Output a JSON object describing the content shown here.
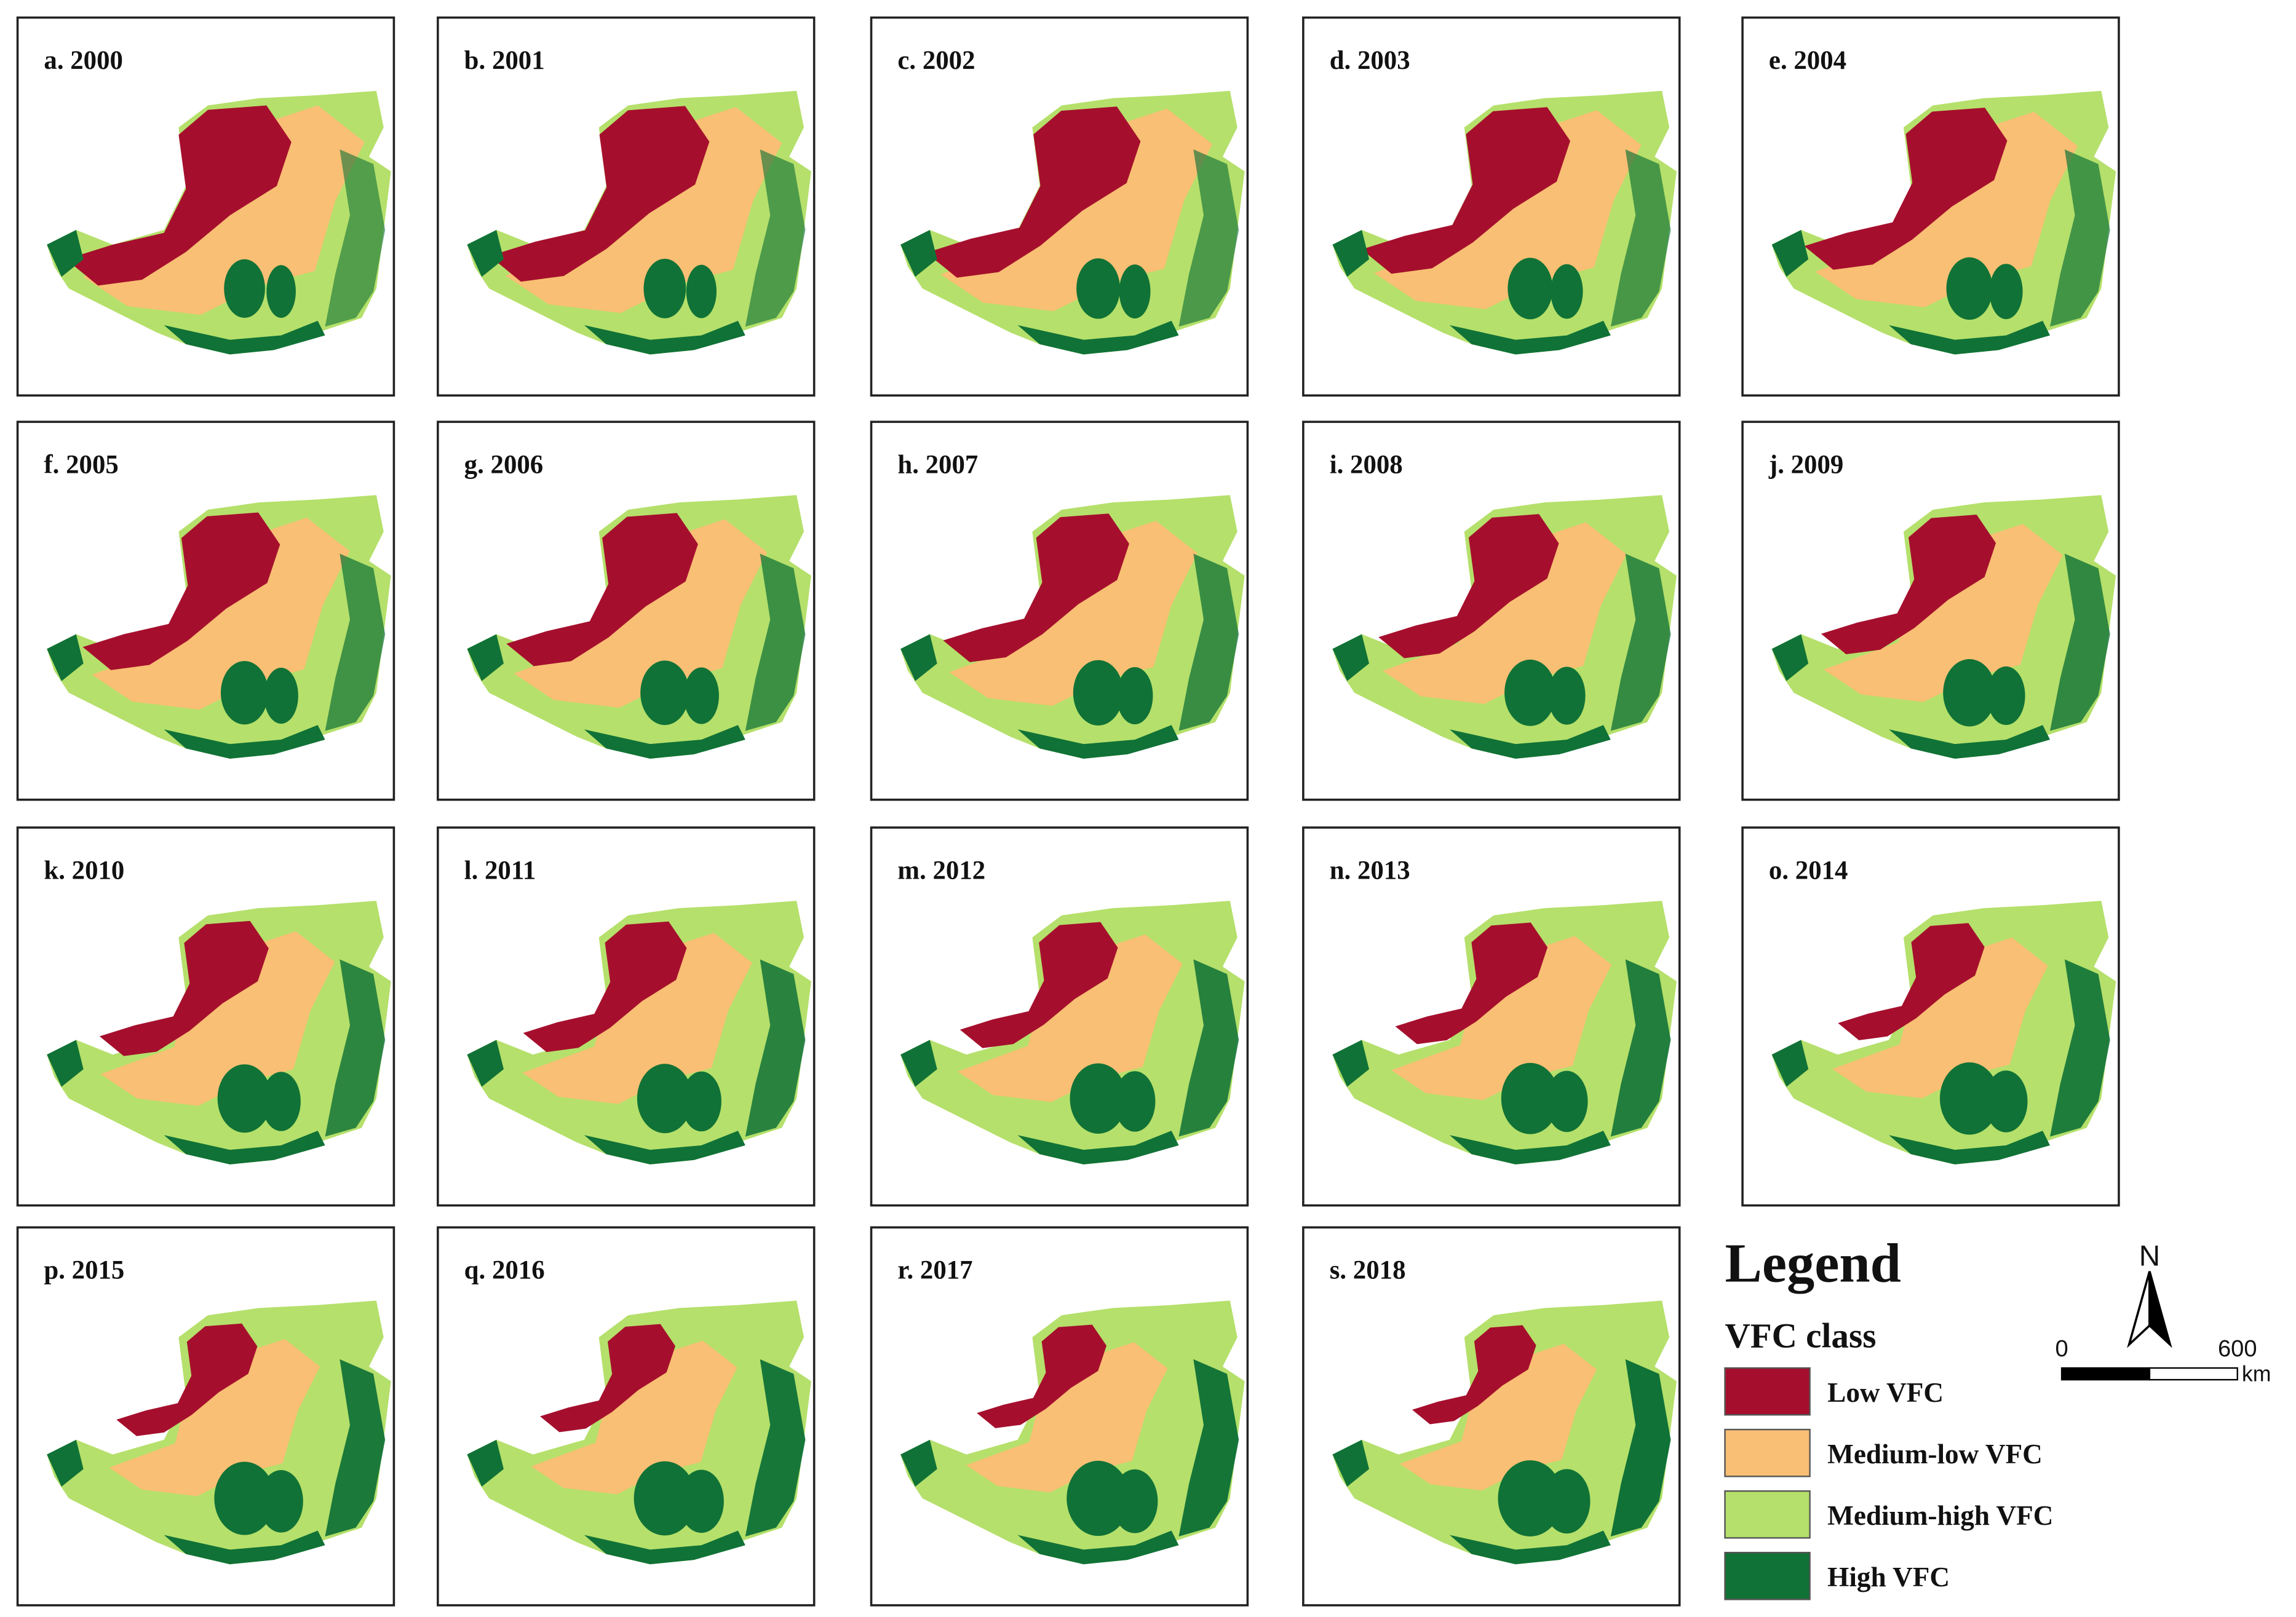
{
  "panels": [
    {
      "label": "a. 2000"
    },
    {
      "label": "b. 2001"
    },
    {
      "label": "c. 2002"
    },
    {
      "label": "d. 2003"
    },
    {
      "label": "e. 2004"
    },
    {
      "label": "f. 2005"
    },
    {
      "label": "g. 2006"
    },
    {
      "label": "h. 2007"
    },
    {
      "label": "i. 2008"
    },
    {
      "label": "j. 2009"
    },
    {
      "label": "k. 2010"
    },
    {
      "label": "l. 2011"
    },
    {
      "label": "m. 2012"
    },
    {
      "label": "n. 2013"
    },
    {
      "label": "o. 2014"
    },
    {
      "label": "p. 2015"
    },
    {
      "label": "q. 2016"
    },
    {
      "label": "r. 2017"
    },
    {
      "label": "s. 2018"
    }
  ],
  "legend": {
    "title": "Legend",
    "subtitle": "VFC class",
    "classes": [
      {
        "label": "Low VFC",
        "color": "#a50f2d"
      },
      {
        "label": "Medium-low VFC",
        "color": "#f9bf74"
      },
      {
        "label": "Medium-high VFC",
        "color": "#b5e06b"
      },
      {
        "label": "High VFC",
        "color": "#107236"
      }
    ]
  },
  "north_arrow": {
    "label": "N"
  },
  "scale_bar": {
    "start": "0",
    "end": "600",
    "unit": "km"
  }
}
